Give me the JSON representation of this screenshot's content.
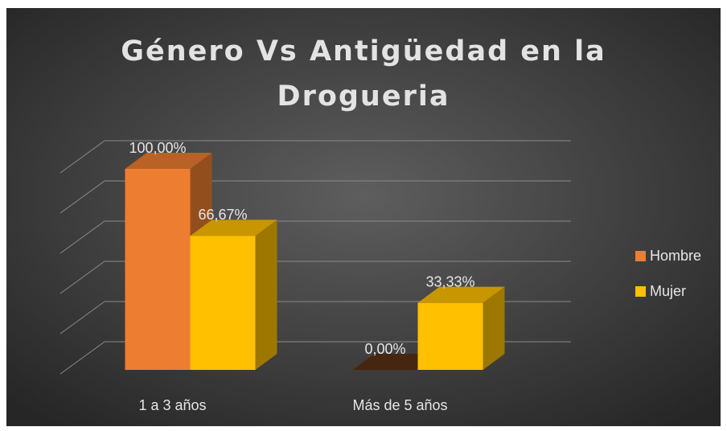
{
  "chart_data": {
    "type": "bar3d",
    "title": "Género Vs Antigüedad en la Drogueria",
    "categories": [
      "1 a 3 años",
      "Más de 5 años"
    ],
    "series": [
      {
        "name": "Hombre",
        "color": "#ED7D31",
        "values": [
          100,
          0
        ],
        "value_labels": [
          "100,00%",
          "0,00%"
        ]
      },
      {
        "name": "Mujer",
        "color": "#FFC000",
        "values": [
          66.67,
          33.33
        ],
        "value_labels": [
          "66,67%",
          "33,33%"
        ]
      }
    ],
    "ylim": [
      0,
      100
    ],
    "yticks": [
      0,
      20,
      40,
      60,
      80,
      100
    ],
    "grid": true,
    "legend": "right"
  }
}
